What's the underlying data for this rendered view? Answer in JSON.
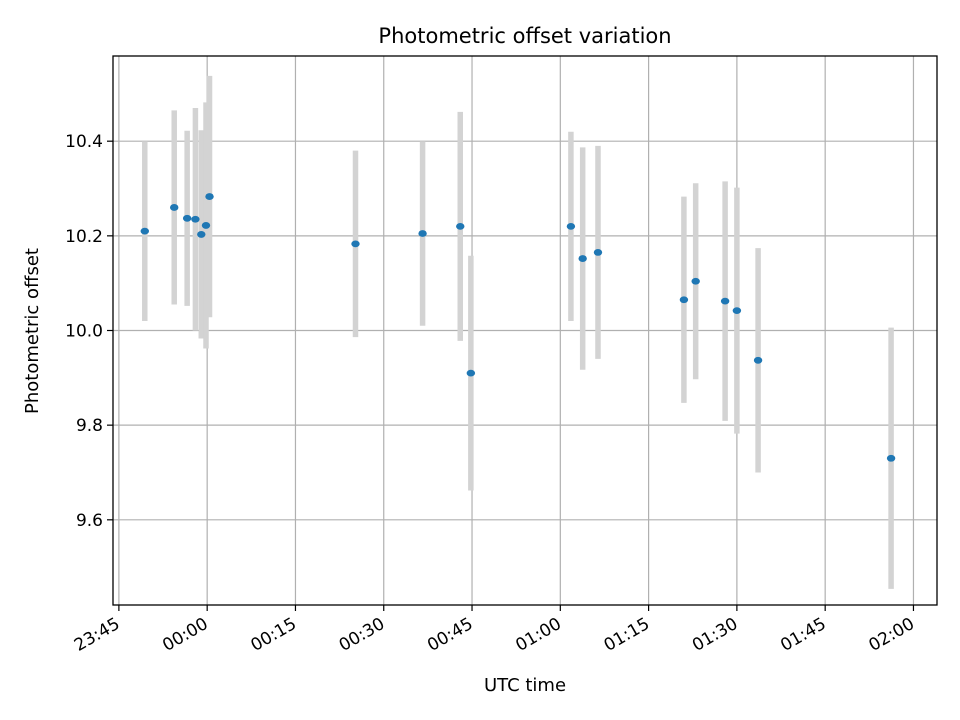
{
  "chart_data": {
    "type": "scatter",
    "title": "Photometric offset variation",
    "xlabel": "UTC time",
    "ylabel": "Photometric offset",
    "x_unit": "time of day (HH:MM, UTC); points after midnight use hours >= 24",
    "xlim": [
      "23:44",
      "26:04"
    ],
    "ylim": [
      9.42,
      10.58
    ],
    "x_ticks": [
      {
        "t": "23:45",
        "label": "23:45"
      },
      {
        "t": "24:00",
        "label": "00:00"
      },
      {
        "t": "24:15",
        "label": "00:15"
      },
      {
        "t": "24:30",
        "label": "00:30"
      },
      {
        "t": "24:45",
        "label": "00:45"
      },
      {
        "t": "25:00",
        "label": "01:00"
      },
      {
        "t": "25:15",
        "label": "01:15"
      },
      {
        "t": "25:30",
        "label": "01:30"
      },
      {
        "t": "25:45",
        "label": "01:45"
      },
      {
        "t": "26:00",
        "label": "02:00"
      }
    ],
    "y_ticks": [
      {
        "v": 9.6,
        "label": "9.6"
      },
      {
        "v": 9.8,
        "label": "9.8"
      },
      {
        "v": 10.0,
        "label": "10.0"
      },
      {
        "v": 10.2,
        "label": "10.2"
      },
      {
        "v": 10.4,
        "label": "10.4"
      }
    ],
    "grid": true,
    "colors": {
      "point": "#1f77b4",
      "errorbar": "#d3d3d3"
    },
    "points": [
      {
        "t": "23:49:24",
        "y": 10.21,
        "err": 0.19
      },
      {
        "t": "23:54:24",
        "y": 10.26,
        "err": 0.205
      },
      {
        "t": "23:56:36",
        "y": 10.237,
        "err": 0.185
      },
      {
        "t": "23:58:00",
        "y": 10.235,
        "err": 0.235
      },
      {
        "t": "23:59:00",
        "y": 10.203,
        "err": 0.22
      },
      {
        "t": "23:59:48",
        "y": 10.222,
        "err": 0.26
      },
      {
        "t": "24:00:24",
        "y": 10.283,
        "err": 0.255
      },
      {
        "t": "24:25:12",
        "y": 10.183,
        "err": 0.197
      },
      {
        "t": "24:36:36",
        "y": 10.205,
        "err": 0.195
      },
      {
        "t": "24:43:00",
        "y": 10.22,
        "err": 0.242
      },
      {
        "t": "24:44:48",
        "y": 9.91,
        "err": 0.248
      },
      {
        "t": "25:01:48",
        "y": 10.22,
        "err": 0.2
      },
      {
        "t": "25:03:48",
        "y": 10.152,
        "err": 0.235
      },
      {
        "t": "25:06:24",
        "y": 10.165,
        "err": 0.225
      },
      {
        "t": "25:21:00",
        "y": 10.065,
        "err": 0.218
      },
      {
        "t": "25:23:00",
        "y": 10.104,
        "err": 0.207
      },
      {
        "t": "25:28:00",
        "y": 10.062,
        "err": 0.253
      },
      {
        "t": "25:30:00",
        "y": 10.042,
        "err": 0.26
      },
      {
        "t": "25:33:36",
        "y": 9.937,
        "err": 0.237
      },
      {
        "t": "25:56:12",
        "y": 9.73,
        "err": 0.276
      }
    ]
  }
}
